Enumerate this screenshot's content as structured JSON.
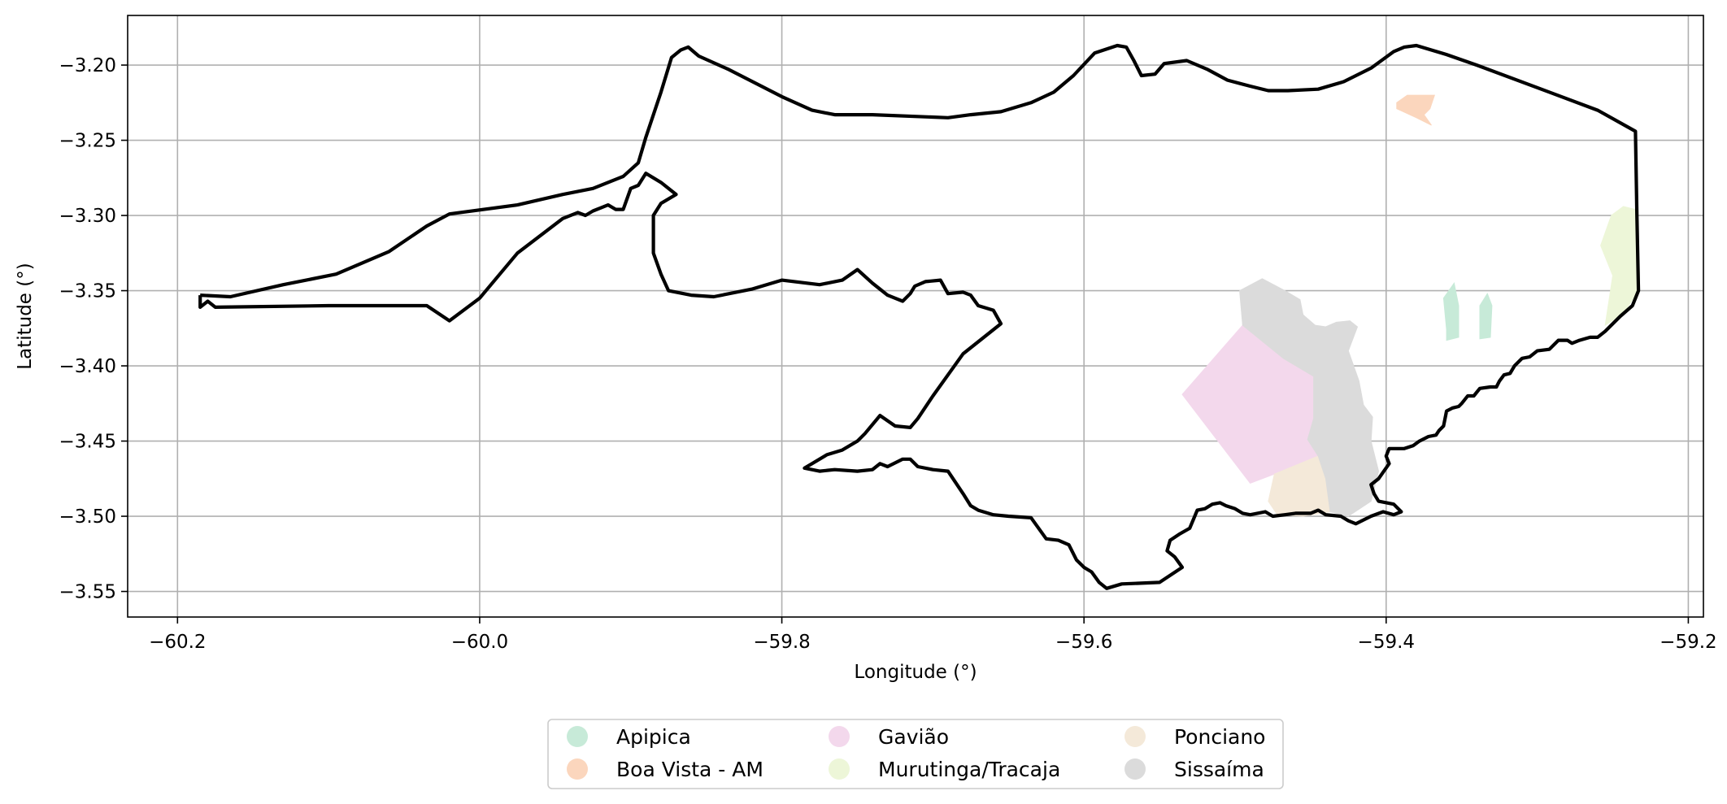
{
  "chart_data": {
    "type": "map",
    "title": "",
    "xlabel": "Longitude (°)",
    "ylabel": "Latitude (°)",
    "xlim": [
      -60.233,
      -59.19
    ],
    "ylim": [
      -3.567,
      -3.167
    ],
    "grid": true,
    "x_ticks": [
      {
        "value": -60.2,
        "label": "−60.2"
      },
      {
        "value": -60.0,
        "label": "−60.0"
      },
      {
        "value": -59.8,
        "label": "−59.8"
      },
      {
        "value": -59.6,
        "label": "−59.6"
      },
      {
        "value": -59.4,
        "label": "−59.4"
      },
      {
        "value": -59.2,
        "label": "−59.2"
      }
    ],
    "y_ticks": [
      {
        "value": -3.2,
        "label": "−3.20"
      },
      {
        "value": -3.25,
        "label": "−3.25"
      },
      {
        "value": -3.3,
        "label": "−3.30"
      },
      {
        "value": -3.35,
        "label": "−3.35"
      },
      {
        "value": -3.4,
        "label": "−3.40"
      },
      {
        "value": -3.45,
        "label": "−3.45"
      },
      {
        "value": -3.5,
        "label": "−3.50"
      },
      {
        "value": -3.55,
        "label": "−3.55"
      }
    ],
    "legend": {
      "placement": "bottom-center",
      "columns": 3,
      "entries": [
        {
          "name": "Apipica",
          "color": "#c7ead8"
        },
        {
          "name": "Boa Vista - AM",
          "color": "#fbd6bd"
        },
        {
          "name": "Gavião",
          "color": "#f3d8ec"
        },
        {
          "name": "Murutinga/Tracaja",
          "color": "#edf6d8"
        },
        {
          "name": "Ponciano",
          "color": "#f4e9d9"
        },
        {
          "name": "Sissaíma",
          "color": "#dbdbdb"
        }
      ]
    },
    "regions": [
      {
        "name": "Gavião",
        "color": "#f3d8ec",
        "coords": [
          [
            -59.535,
            -3.419
          ],
          [
            -59.495,
            -3.373
          ],
          [
            -59.468,
            -3.395
          ],
          [
            -59.448,
            -3.407
          ],
          [
            -59.448,
            -3.435
          ],
          [
            -59.452,
            -3.449
          ],
          [
            -59.445,
            -3.46
          ],
          [
            -59.474,
            -3.472
          ],
          [
            -59.49,
            -3.478
          ],
          [
            -59.535,
            -3.419
          ]
        ]
      },
      {
        "name": "Ponciano",
        "color": "#f4e9d9",
        "coords": [
          [
            -59.474,
            -3.472
          ],
          [
            -59.445,
            -3.46
          ],
          [
            -59.44,
            -3.475
          ],
          [
            -59.437,
            -3.497
          ],
          [
            -59.455,
            -3.5
          ],
          [
            -59.472,
            -3.499
          ],
          [
            -59.478,
            -3.49
          ],
          [
            -59.474,
            -3.472
          ]
        ]
      },
      {
        "name": "Sissaíma",
        "color": "#dbdbdb",
        "coords": [
          [
            -59.497,
            -3.35
          ],
          [
            -59.482,
            -3.342
          ],
          [
            -59.467,
            -3.35
          ],
          [
            -59.457,
            -3.356
          ],
          [
            -59.455,
            -3.366
          ],
          [
            -59.447,
            -3.373
          ],
          [
            -59.44,
            -3.374
          ],
          [
            -59.433,
            -3.371
          ],
          [
            -59.424,
            -3.37
          ],
          [
            -59.419,
            -3.374
          ],
          [
            -59.425,
            -3.39
          ],
          [
            -59.418,
            -3.41
          ],
          [
            -59.415,
            -3.426
          ],
          [
            -59.409,
            -3.434
          ],
          [
            -59.41,
            -3.45
          ],
          [
            -59.405,
            -3.47
          ],
          [
            -59.41,
            -3.49
          ],
          [
            -59.425,
            -3.5
          ],
          [
            -59.437,
            -3.497
          ],
          [
            -59.44,
            -3.475
          ],
          [
            -59.445,
            -3.46
          ],
          [
            -59.452,
            -3.449
          ],
          [
            -59.448,
            -3.435
          ],
          [
            -59.448,
            -3.407
          ],
          [
            -59.468,
            -3.395
          ],
          [
            -59.495,
            -3.373
          ],
          [
            -59.497,
            -3.35
          ]
        ]
      },
      {
        "name": "Boa Vista - AM",
        "color": "#fbd6bd",
        "coords": [
          [
            -59.393,
            -3.225
          ],
          [
            -59.386,
            -3.22
          ],
          [
            -59.368,
            -3.22
          ],
          [
            -59.371,
            -3.229
          ],
          [
            -59.375,
            -3.233
          ],
          [
            -59.37,
            -3.24
          ],
          [
            -59.38,
            -3.235
          ],
          [
            -59.393,
            -3.229
          ],
          [
            -59.393,
            -3.225
          ]
        ]
      },
      {
        "name": "Apipica",
        "color": "#c7ead8",
        "coords": [
          [
            -59.355,
            -3.345
          ],
          [
            -59.362,
            -3.355
          ],
          [
            -59.36,
            -3.376
          ],
          [
            -59.36,
            -3.383
          ],
          [
            -59.352,
            -3.381
          ],
          [
            -59.352,
            -3.36
          ],
          [
            -59.355,
            -3.345
          ]
        ]
      },
      {
        "name": "Apipica",
        "color": "#c7ead8",
        "coords": [
          [
            -59.333,
            -3.352
          ],
          [
            -59.338,
            -3.36
          ],
          [
            -59.338,
            -3.382
          ],
          [
            -59.331,
            -3.381
          ],
          [
            -59.33,
            -3.36
          ],
          [
            -59.333,
            -3.352
          ]
        ]
      },
      {
        "name": "Murutinga/Tracaja",
        "color": "#edf6d8",
        "coords": [
          [
            -59.243,
            -3.294
          ],
          [
            -59.235,
            -3.296
          ],
          [
            -59.233,
            -3.35
          ],
          [
            -59.243,
            -3.365
          ],
          [
            -59.255,
            -3.373
          ],
          [
            -59.25,
            -3.34
          ],
          [
            -59.258,
            -3.32
          ],
          [
            -59.251,
            -3.3
          ],
          [
            -59.243,
            -3.294
          ]
        ]
      }
    ],
    "boundary": [
      [
        -60.185,
        -3.353
      ],
      [
        -60.165,
        -3.354
      ],
      [
        -60.13,
        -3.346
      ],
      [
        -60.095,
        -3.339
      ],
      [
        -60.06,
        -3.324
      ],
      [
        -60.035,
        -3.307
      ],
      [
        -60.02,
        -3.299
      ],
      [
        -59.975,
        -3.293
      ],
      [
        -59.945,
        -3.286
      ],
      [
        -59.925,
        -3.282
      ],
      [
        -59.905,
        -3.274
      ],
      [
        -59.895,
        -3.265
      ],
      [
        -59.89,
        -3.248
      ],
      [
        -59.88,
        -3.218
      ],
      [
        -59.873,
        -3.195
      ],
      [
        -59.867,
        -3.19
      ],
      [
        -59.862,
        -3.188
      ],
      [
        -59.855,
        -3.194
      ],
      [
        -59.835,
        -3.203
      ],
      [
        -59.8,
        -3.221
      ],
      [
        -59.78,
        -3.23
      ],
      [
        -59.765,
        -3.233
      ],
      [
        -59.74,
        -3.233
      ],
      [
        -59.69,
        -3.235
      ],
      [
        -59.675,
        -3.233
      ],
      [
        -59.655,
        -3.231
      ],
      [
        -59.635,
        -3.225
      ],
      [
        -59.62,
        -3.218
      ],
      [
        -59.607,
        -3.207
      ],
      [
        -59.593,
        -3.192
      ],
      [
        -59.578,
        -3.187
      ],
      [
        -59.572,
        -3.188
      ],
      [
        -59.567,
        -3.197
      ],
      [
        -59.562,
        -3.207
      ],
      [
        -59.553,
        -3.206
      ],
      [
        -59.547,
        -3.199
      ],
      [
        -59.532,
        -3.197
      ],
      [
        -59.518,
        -3.203
      ],
      [
        -59.505,
        -3.21
      ],
      [
        -59.49,
        -3.214
      ],
      [
        -59.478,
        -3.217
      ],
      [
        -59.465,
        -3.217
      ],
      [
        -59.445,
        -3.216
      ],
      [
        -59.428,
        -3.211
      ],
      [
        -59.41,
        -3.202
      ],
      [
        -59.395,
        -3.191
      ],
      [
        -59.388,
        -3.188
      ],
      [
        -59.38,
        -3.187
      ],
      [
        -59.36,
        -3.193
      ],
      [
        -59.34,
        -3.2
      ],
      [
        -59.3,
        -3.215
      ],
      [
        -59.26,
        -3.23
      ],
      [
        -59.235,
        -3.244
      ],
      [
        -59.234,
        -3.3
      ],
      [
        -59.233,
        -3.35
      ],
      [
        -59.237,
        -3.36
      ],
      [
        -59.245,
        -3.367
      ],
      [
        -59.255,
        -3.377
      ],
      [
        -59.26,
        -3.381
      ],
      [
        -59.265,
        -3.381
      ],
      [
        -59.272,
        -3.383
      ],
      [
        -59.277,
        -3.385
      ],
      [
        -59.28,
        -3.383
      ],
      [
        -59.286,
        -3.383
      ],
      [
        -59.292,
        -3.389
      ],
      [
        -59.3,
        -3.39
      ],
      [
        -59.305,
        -3.394
      ],
      [
        -59.31,
        -3.395
      ],
      [
        -59.315,
        -3.4
      ],
      [
        -59.318,
        -3.405
      ],
      [
        -59.322,
        -3.406
      ],
      [
        -59.325,
        -3.41
      ],
      [
        -59.327,
        -3.414
      ],
      [
        -59.331,
        -3.414
      ],
      [
        -59.338,
        -3.415
      ],
      [
        -59.342,
        -3.42
      ],
      [
        -59.346,
        -3.42
      ],
      [
        -59.35,
        -3.425
      ],
      [
        -59.352,
        -3.427
      ],
      [
        -59.356,
        -3.428
      ],
      [
        -59.36,
        -3.43
      ],
      [
        -59.362,
        -3.44
      ],
      [
        -59.365,
        -3.443
      ],
      [
        -59.367,
        -3.446
      ],
      [
        -59.372,
        -3.447
      ],
      [
        -59.378,
        -3.45
      ],
      [
        -59.382,
        -3.453
      ],
      [
        -59.388,
        -3.455
      ],
      [
        -59.398,
        -3.455
      ],
      [
        -59.4,
        -3.46
      ],
      [
        -59.398,
        -3.465
      ],
      [
        -59.405,
        -3.475
      ],
      [
        -59.41,
        -3.479
      ],
      [
        -59.408,
        -3.485
      ],
      [
        -59.405,
        -3.49
      ],
      [
        -59.395,
        -3.492
      ],
      [
        -59.39,
        -3.497
      ],
      [
        -59.395,
        -3.499
      ],
      [
        -59.402,
        -3.497
      ],
      [
        -59.41,
        -3.5
      ],
      [
        -59.42,
        -3.505
      ],
      [
        -59.425,
        -3.503
      ],
      [
        -59.43,
        -3.5
      ],
      [
        -59.44,
        -3.499
      ],
      [
        -59.445,
        -3.496
      ],
      [
        -59.45,
        -3.498
      ],
      [
        -59.46,
        -3.498
      ],
      [
        -59.467,
        -3.499
      ],
      [
        -59.475,
        -3.5
      ],
      [
        -59.48,
        -3.497
      ],
      [
        -59.49,
        -3.499
      ],
      [
        -59.495,
        -3.498
      ],
      [
        -59.5,
        -3.495
      ],
      [
        -59.506,
        -3.493
      ],
      [
        -59.51,
        -3.491
      ],
      [
        -59.515,
        -3.492
      ],
      [
        -59.52,
        -3.495
      ],
      [
        -59.525,
        -3.496
      ],
      [
        -59.53,
        -3.508
      ],
      [
        -59.537,
        -3.512
      ],
      [
        -59.543,
        -3.516
      ],
      [
        -59.545,
        -3.523
      ],
      [
        -59.54,
        -3.527
      ],
      [
        -59.535,
        -3.534
      ],
      [
        -59.55,
        -3.544
      ],
      [
        -59.575,
        -3.545
      ],
      [
        -59.585,
        -3.548
      ],
      [
        -59.59,
        -3.544
      ],
      [
        -59.595,
        -3.537
      ],
      [
        -59.6,
        -3.534
      ],
      [
        -59.605,
        -3.529
      ],
      [
        -59.61,
        -3.519
      ],
      [
        -59.617,
        -3.516
      ],
      [
        -59.625,
        -3.515
      ],
      [
        -59.635,
        -3.501
      ],
      [
        -59.65,
        -3.5
      ],
      [
        -59.66,
        -3.499
      ],
      [
        -59.67,
        -3.496
      ],
      [
        -59.675,
        -3.493
      ],
      [
        -59.68,
        -3.485
      ],
      [
        -59.69,
        -3.47
      ],
      [
        -59.7,
        -3.469
      ],
      [
        -59.71,
        -3.467
      ],
      [
        -59.715,
        -3.462
      ],
      [
        -59.72,
        -3.462
      ],
      [
        -59.73,
        -3.467
      ],
      [
        -59.735,
        -3.465
      ],
      [
        -59.74,
        -3.469
      ],
      [
        -59.75,
        -3.47
      ],
      [
        -59.765,
        -3.469
      ],
      [
        -59.775,
        -3.47
      ],
      [
        -59.785,
        -3.468
      ],
      [
        -59.78,
        -3.465
      ],
      [
        -59.77,
        -3.459
      ],
      [
        -59.76,
        -3.456
      ],
      [
        -59.75,
        -3.45
      ],
      [
        -59.745,
        -3.445
      ],
      [
        -59.735,
        -3.433
      ],
      [
        -59.725,
        -3.44
      ],
      [
        -59.715,
        -3.441
      ],
      [
        -59.71,
        -3.435
      ],
      [
        -59.7,
        -3.42
      ],
      [
        -59.68,
        -3.392
      ],
      [
        -59.655,
        -3.372
      ],
      [
        -59.66,
        -3.363
      ],
      [
        -59.67,
        -3.36
      ],
      [
        -59.675,
        -3.353
      ],
      [
        -59.68,
        -3.351
      ],
      [
        -59.69,
        -3.352
      ],
      [
        -59.695,
        -3.343
      ],
      [
        -59.705,
        -3.344
      ],
      [
        -59.712,
        -3.347
      ],
      [
        -59.715,
        -3.352
      ],
      [
        -59.72,
        -3.357
      ],
      [
        -59.725,
        -3.355
      ],
      [
        -59.73,
        -3.353
      ],
      [
        -59.735,
        -3.349
      ],
      [
        -59.74,
        -3.345
      ],
      [
        -59.75,
        -3.336
      ],
      [
        -59.76,
        -3.343
      ],
      [
        -59.775,
        -3.346
      ],
      [
        -59.8,
        -3.343
      ],
      [
        -59.82,
        -3.349
      ],
      [
        -59.845,
        -3.354
      ],
      [
        -59.86,
        -3.353
      ],
      [
        -59.875,
        -3.35
      ],
      [
        -59.88,
        -3.339
      ],
      [
        -59.885,
        -3.325
      ],
      [
        -59.885,
        -3.3
      ],
      [
        -59.88,
        -3.292
      ],
      [
        -59.87,
        -3.286
      ],
      [
        -59.88,
        -3.278
      ],
      [
        -59.89,
        -3.272
      ],
      [
        -59.895,
        -3.28
      ],
      [
        -59.9,
        -3.282
      ],
      [
        -59.905,
        -3.296
      ],
      [
        -59.91,
        -3.296
      ],
      [
        -59.915,
        -3.293
      ],
      [
        -59.92,
        -3.295
      ],
      [
        -59.925,
        -3.297
      ],
      [
        -59.93,
        -3.3
      ],
      [
        -59.935,
        -3.298
      ],
      [
        -59.945,
        -3.302
      ],
      [
        -59.975,
        -3.325
      ],
      [
        -60.0,
        -3.355
      ],
      [
        -60.02,
        -3.37
      ],
      [
        -60.035,
        -3.36
      ],
      [
        -60.1,
        -3.36
      ],
      [
        -60.175,
        -3.361
      ],
      [
        -60.18,
        -3.357
      ],
      [
        -60.185,
        -3.361
      ],
      [
        -60.185,
        -3.353
      ]
    ]
  }
}
